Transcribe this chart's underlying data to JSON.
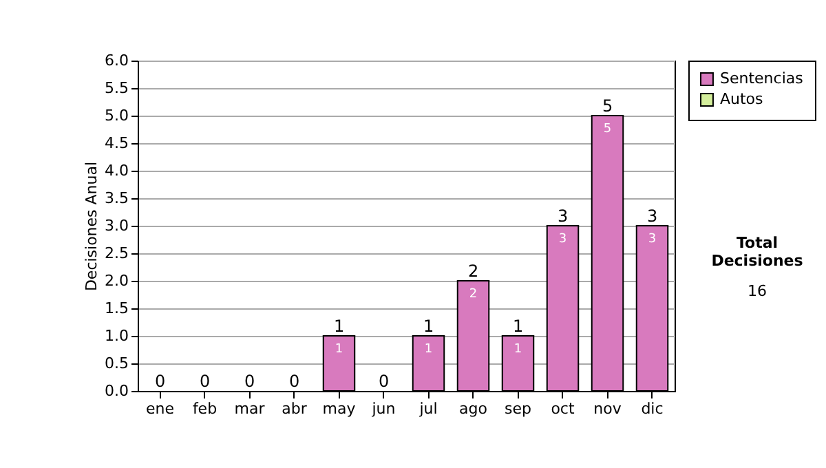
{
  "chart_data": {
    "type": "bar",
    "stacked": true,
    "ylabel": "Decisiones Anual",
    "categories": [
      "ene",
      "feb",
      "mar",
      "abr",
      "may",
      "jun",
      "jul",
      "ago",
      "sep",
      "oct",
      "nov",
      "dic"
    ],
    "series": [
      {
        "name": "Sentencias",
        "color": "#d87abe",
        "values": [
          0,
          0,
          0,
          0,
          1,
          0,
          1,
          2,
          1,
          3,
          5,
          3
        ],
        "value_labels": [
          null,
          null,
          null,
          null,
          "1",
          null,
          "1",
          "2",
          "1",
          "3",
          "5",
          "3"
        ]
      },
      {
        "name": "Autos",
        "color": "#d4ee9c",
        "values": [
          0,
          0,
          0,
          0,
          0,
          0,
          0,
          0,
          0,
          0,
          0,
          0
        ]
      }
    ],
    "totals": [
      "0",
      "0",
      "0",
      "0",
      "1",
      "0",
      "1",
      "2",
      "1",
      "3",
      "5",
      "3"
    ],
    "ylim": [
      0,
      6
    ],
    "yticks": [
      {
        "value": 0,
        "label": "0.0"
      },
      {
        "value": 0.5,
        "label": "0.5"
      },
      {
        "value": 1,
        "label": "1.0"
      },
      {
        "value": 1.5,
        "label": "1.5"
      },
      {
        "value": 2,
        "label": "2.0"
      },
      {
        "value": 2.5,
        "label": "2.5"
      },
      {
        "value": 3,
        "label": "3.0"
      },
      {
        "value": 3.5,
        "label": "3.5"
      },
      {
        "value": 4,
        "label": "4.0"
      },
      {
        "value": 4.5,
        "label": "4.5"
      },
      {
        "value": 5,
        "label": "5.0"
      },
      {
        "value": 5.5,
        "label": "5.5"
      },
      {
        "value": 6,
        "label": "6.0"
      }
    ],
    "grid": "y",
    "legend": "right",
    "annotations": [
      "Total Decisiones",
      "16"
    ]
  }
}
